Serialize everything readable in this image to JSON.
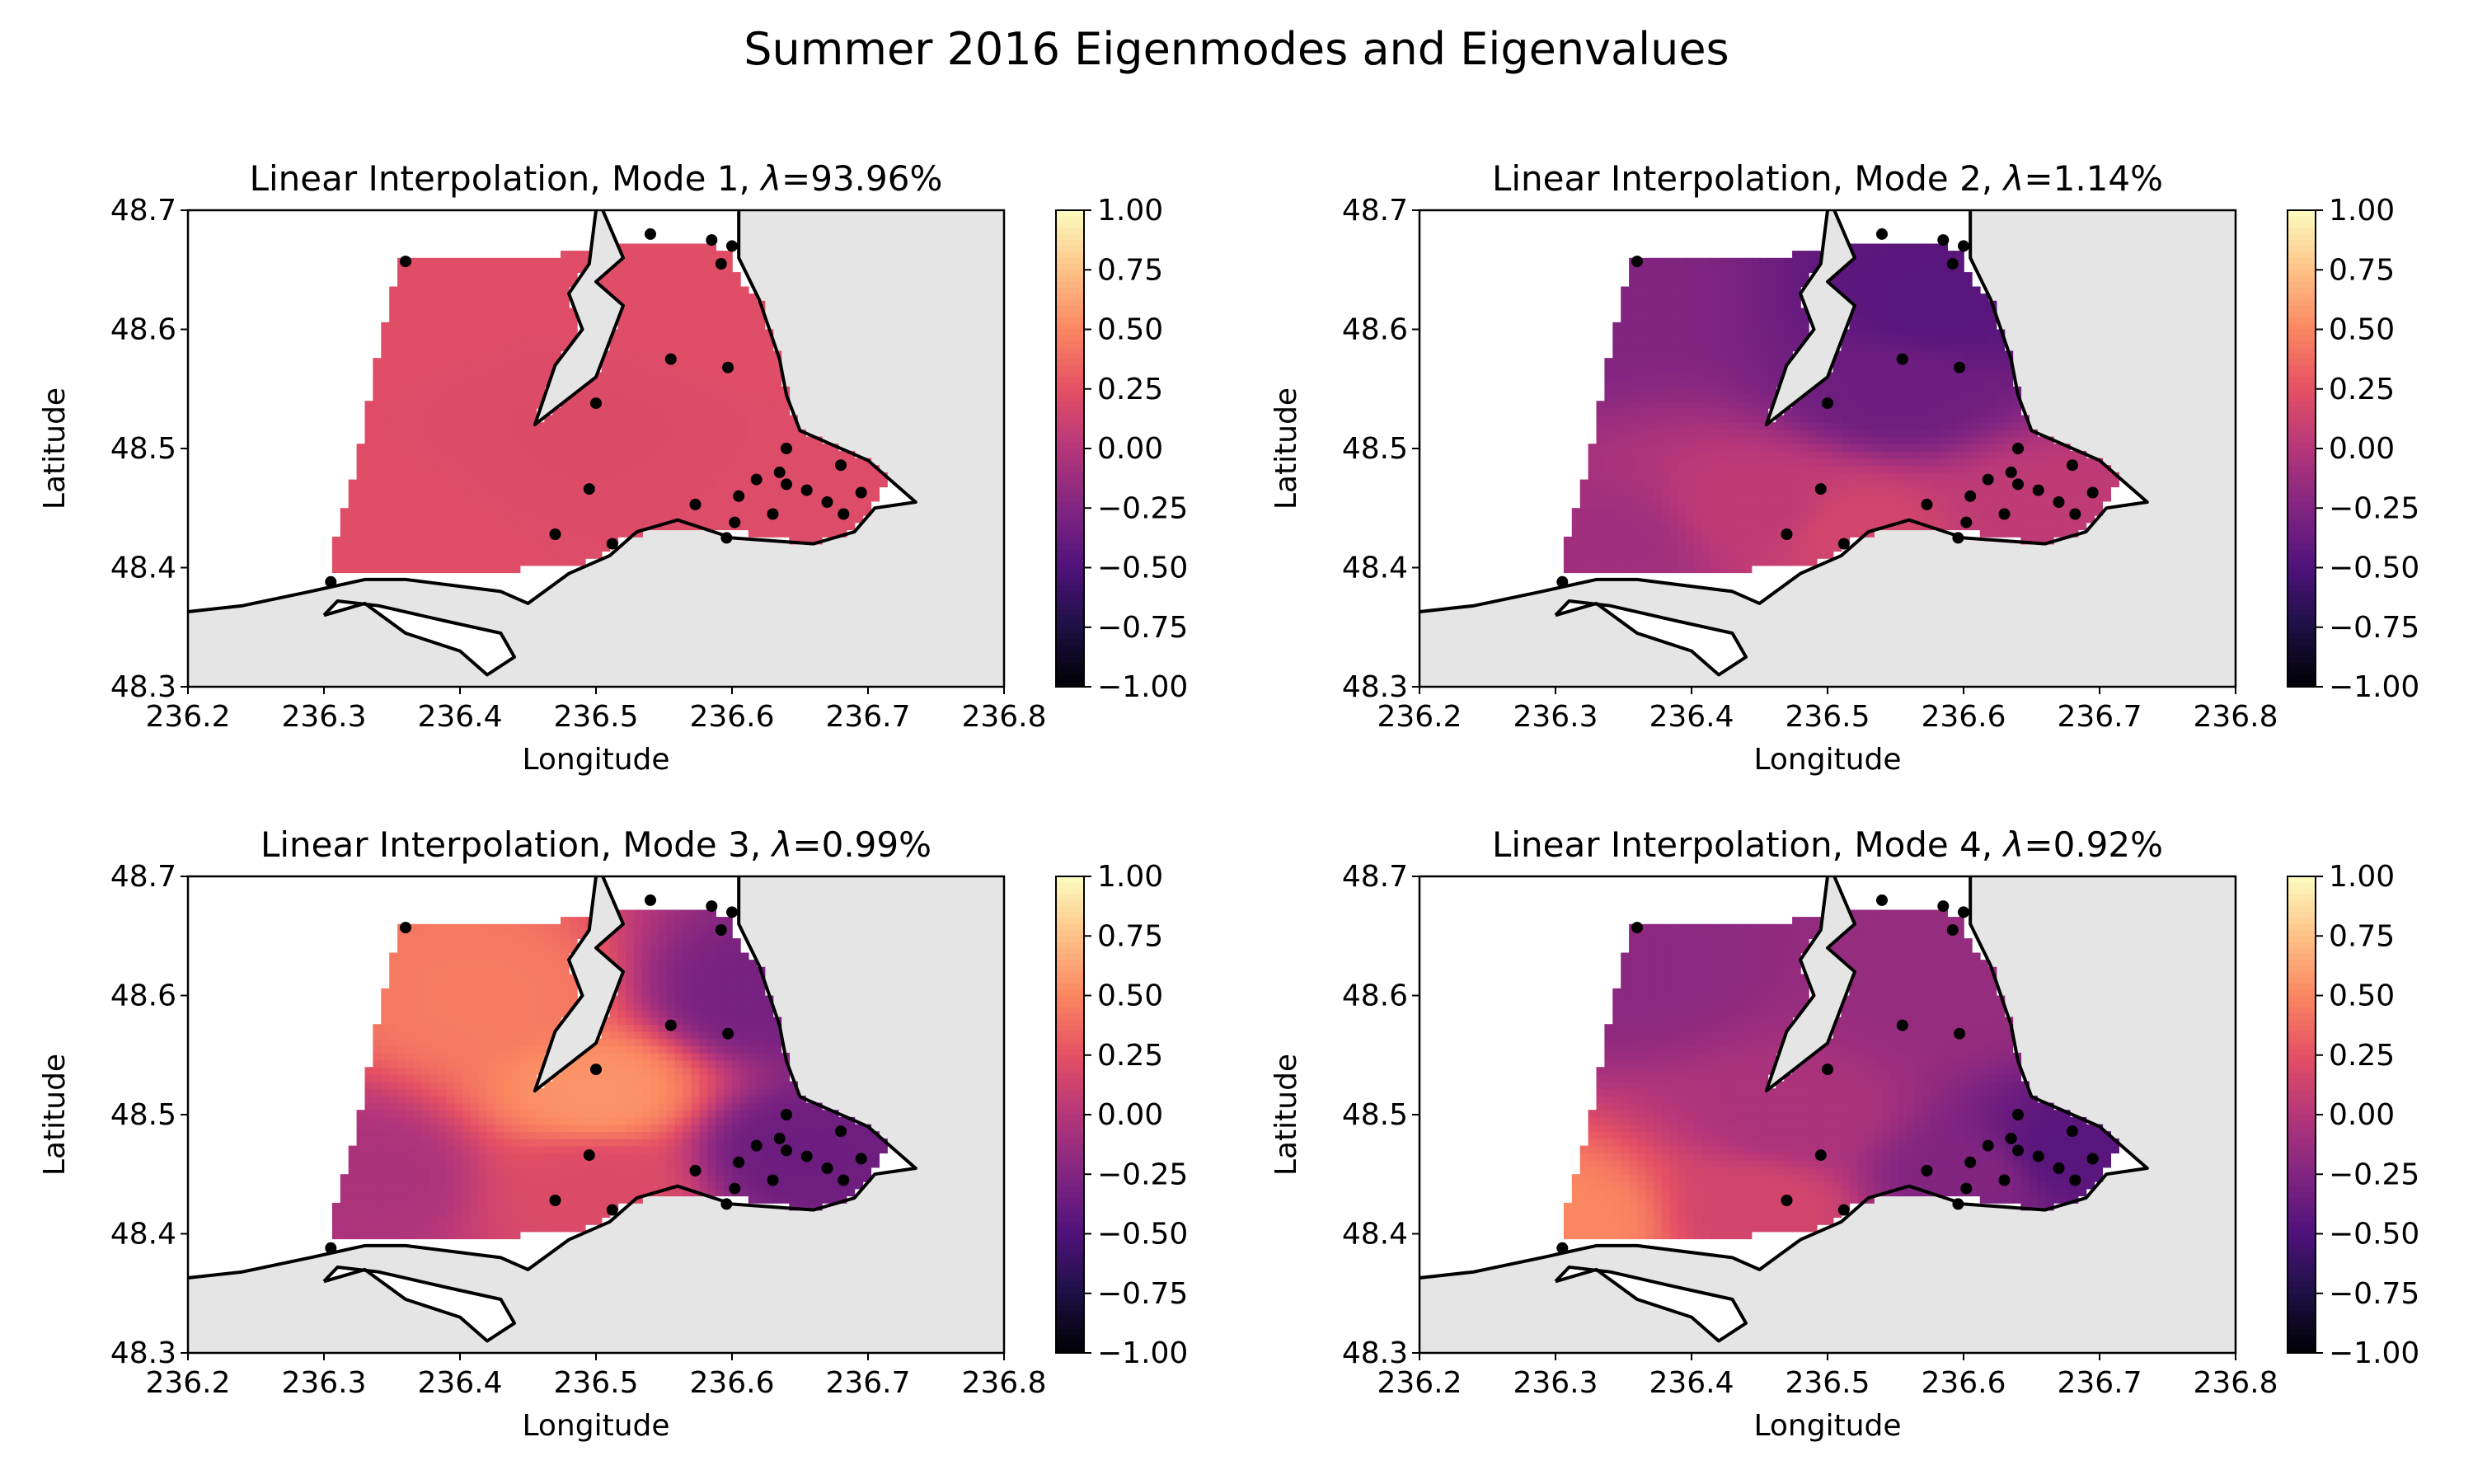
{
  "figure": {
    "title": "Summer 2016 Eigenmodes and Eigenvalues"
  },
  "colors": {
    "land": "#e5e5e5",
    "water": "#ffffff",
    "coast": "#000000",
    "station": "#000000",
    "colormap": [
      "#000004",
      "#1c1044",
      "#4f127b",
      "#812581",
      "#b5367a",
      "#e55064",
      "#fb8761",
      "#fec287",
      "#fcfdbf"
    ]
  },
  "chart_data": [
    {
      "type": "heatmap",
      "title": "Linear Interpolation, Mode 1, λ=93.96%",
      "title_prefix": "Linear Interpolation, Mode 1, ",
      "lambda_symbol": "λ",
      "lambda_value": "=93.96%",
      "xlabel": "Longitude",
      "ylabel": "Latitude",
      "xlim": [
        236.2,
        236.8
      ],
      "ylim": [
        48.3,
        48.7
      ],
      "xticks": [
        "236.2",
        "236.3",
        "236.4",
        "236.5",
        "236.6",
        "236.7",
        "236.8"
      ],
      "yticks": [
        "48.3",
        "48.4",
        "48.5",
        "48.6",
        "48.7"
      ],
      "colorbar": {
        "range": [
          -1,
          1
        ],
        "ticks": [
          "1.00",
          "0.75",
          "0.50",
          "0.25",
          "0.00",
          "−0.25",
          "−0.50",
          "−0.75",
          "−1.00"
        ]
      },
      "field_anchors": [
        {
          "lon": 236.36,
          "lat": 48.65,
          "value": 0.22
        },
        {
          "lon": 236.31,
          "lat": 48.41,
          "value": 0.22
        },
        {
          "lon": 236.5,
          "lat": 48.52,
          "value": 0.2
        },
        {
          "lon": 236.6,
          "lat": 48.62,
          "value": 0.22
        },
        {
          "lon": 236.68,
          "lat": 48.45,
          "value": 0.21
        }
      ],
      "stations": [
        {
          "lon": 236.36,
          "lat": 48.657
        },
        {
          "lon": 236.305,
          "lat": 48.388
        },
        {
          "lon": 236.54,
          "lat": 48.68
        },
        {
          "lon": 236.585,
          "lat": 48.675
        },
        {
          "lon": 236.6,
          "lat": 48.67
        },
        {
          "lon": 236.592,
          "lat": 48.655
        },
        {
          "lon": 236.555,
          "lat": 48.575
        },
        {
          "lon": 236.597,
          "lat": 48.568
        },
        {
          "lon": 236.5,
          "lat": 48.538
        },
        {
          "lon": 236.495,
          "lat": 48.466
        },
        {
          "lon": 236.47,
          "lat": 48.428
        },
        {
          "lon": 236.512,
          "lat": 48.42
        },
        {
          "lon": 236.573,
          "lat": 48.453
        },
        {
          "lon": 236.596,
          "lat": 48.425
        },
        {
          "lon": 236.602,
          "lat": 48.438
        },
        {
          "lon": 236.605,
          "lat": 48.46
        },
        {
          "lon": 236.618,
          "lat": 48.474
        },
        {
          "lon": 236.64,
          "lat": 48.5
        },
        {
          "lon": 236.635,
          "lat": 48.48
        },
        {
          "lon": 236.64,
          "lat": 48.47
        },
        {
          "lon": 236.63,
          "lat": 48.445
        },
        {
          "lon": 236.655,
          "lat": 48.465
        },
        {
          "lon": 236.67,
          "lat": 48.455
        },
        {
          "lon": 236.68,
          "lat": 48.486
        },
        {
          "lon": 236.682,
          "lat": 48.445
        },
        {
          "lon": 236.695,
          "lat": 48.463
        }
      ]
    },
    {
      "type": "heatmap",
      "title": "Linear Interpolation, Mode 2, λ=1.14%",
      "title_prefix": "Linear Interpolation, Mode 2, ",
      "lambda_symbol": "λ",
      "lambda_value": "=1.14%",
      "xlabel": "Longitude",
      "ylabel": "Latitude",
      "xlim": [
        236.2,
        236.8
      ],
      "ylim": [
        48.3,
        48.7
      ],
      "xticks": [
        "236.2",
        "236.3",
        "236.4",
        "236.5",
        "236.6",
        "236.7",
        "236.8"
      ],
      "yticks": [
        "48.3",
        "48.4",
        "48.5",
        "48.6",
        "48.7"
      ],
      "colorbar": {
        "range": [
          -1,
          1
        ],
        "ticks": [
          "1.00",
          "0.75",
          "0.50",
          "0.25",
          "0.00",
          "−0.25",
          "−0.50",
          "−0.75",
          "−1.00"
        ]
      },
      "field_anchors": [
        {
          "lon": 236.33,
          "lat": 48.62,
          "value": -0.25
        },
        {
          "lon": 236.58,
          "lat": 48.62,
          "value": -0.45
        },
        {
          "lon": 236.55,
          "lat": 48.55,
          "value": -0.35
        },
        {
          "lon": 236.45,
          "lat": 48.45,
          "value": 0.05
        },
        {
          "lon": 236.52,
          "lat": 48.43,
          "value": 0.15
        },
        {
          "lon": 236.66,
          "lat": 48.45,
          "value": 0.05
        },
        {
          "lon": 236.34,
          "lat": 48.42,
          "value": -0.1
        }
      ],
      "stations": [
        {
          "lon": 236.36,
          "lat": 48.657
        },
        {
          "lon": 236.305,
          "lat": 48.388
        },
        {
          "lon": 236.54,
          "lat": 48.68
        },
        {
          "lon": 236.585,
          "lat": 48.675
        },
        {
          "lon": 236.6,
          "lat": 48.67
        },
        {
          "lon": 236.592,
          "lat": 48.655
        },
        {
          "lon": 236.555,
          "lat": 48.575
        },
        {
          "lon": 236.597,
          "lat": 48.568
        },
        {
          "lon": 236.5,
          "lat": 48.538
        },
        {
          "lon": 236.495,
          "lat": 48.466
        },
        {
          "lon": 236.47,
          "lat": 48.428
        },
        {
          "lon": 236.512,
          "lat": 48.42
        },
        {
          "lon": 236.573,
          "lat": 48.453
        },
        {
          "lon": 236.596,
          "lat": 48.425
        },
        {
          "lon": 236.602,
          "lat": 48.438
        },
        {
          "lon": 236.605,
          "lat": 48.46
        },
        {
          "lon": 236.618,
          "lat": 48.474
        },
        {
          "lon": 236.64,
          "lat": 48.5
        },
        {
          "lon": 236.635,
          "lat": 48.48
        },
        {
          "lon": 236.64,
          "lat": 48.47
        },
        {
          "lon": 236.63,
          "lat": 48.445
        },
        {
          "lon": 236.655,
          "lat": 48.465
        },
        {
          "lon": 236.67,
          "lat": 48.455
        },
        {
          "lon": 236.68,
          "lat": 48.486
        },
        {
          "lon": 236.682,
          "lat": 48.445
        },
        {
          "lon": 236.695,
          "lat": 48.463
        }
      ]
    },
    {
      "type": "heatmap",
      "title": "Linear Interpolation, Mode 3, λ=0.99%",
      "title_prefix": "Linear Interpolation, Mode 3, ",
      "lambda_symbol": "λ",
      "lambda_value": "=0.99%",
      "xlabel": "Longitude",
      "ylabel": "Latitude",
      "xlim": [
        236.2,
        236.8
      ],
      "ylim": [
        48.3,
        48.7
      ],
      "xticks": [
        "236.2",
        "236.3",
        "236.4",
        "236.5",
        "236.6",
        "236.7",
        "236.8"
      ],
      "yticks": [
        "48.3",
        "48.4",
        "48.5",
        "48.6",
        "48.7"
      ],
      "colorbar": {
        "range": [
          -1,
          1
        ],
        "ticks": [
          "1.00",
          "0.75",
          "0.50",
          "0.25",
          "0.00",
          "−0.25",
          "−0.50",
          "−0.75",
          "−1.00"
        ]
      },
      "field_anchors": [
        {
          "lon": 236.42,
          "lat": 48.6,
          "value": 0.45
        },
        {
          "lon": 236.5,
          "lat": 48.52,
          "value": 0.55
        },
        {
          "lon": 236.33,
          "lat": 48.45,
          "value": -0.05
        },
        {
          "lon": 236.5,
          "lat": 48.44,
          "value": 0.2
        },
        {
          "lon": 236.62,
          "lat": 48.6,
          "value": -0.3
        },
        {
          "lon": 236.65,
          "lat": 48.47,
          "value": -0.35
        }
      ],
      "stations": [
        {
          "lon": 236.36,
          "lat": 48.657
        },
        {
          "lon": 236.305,
          "lat": 48.388
        },
        {
          "lon": 236.54,
          "lat": 48.68
        },
        {
          "lon": 236.585,
          "lat": 48.675
        },
        {
          "lon": 236.6,
          "lat": 48.67
        },
        {
          "lon": 236.592,
          "lat": 48.655
        },
        {
          "lon": 236.555,
          "lat": 48.575
        },
        {
          "lon": 236.597,
          "lat": 48.568
        },
        {
          "lon": 236.5,
          "lat": 48.538
        },
        {
          "lon": 236.495,
          "lat": 48.466
        },
        {
          "lon": 236.47,
          "lat": 48.428
        },
        {
          "lon": 236.512,
          "lat": 48.42
        },
        {
          "lon": 236.573,
          "lat": 48.453
        },
        {
          "lon": 236.596,
          "lat": 48.425
        },
        {
          "lon": 236.602,
          "lat": 48.438
        },
        {
          "lon": 236.605,
          "lat": 48.46
        },
        {
          "lon": 236.618,
          "lat": 48.474
        },
        {
          "lon": 236.64,
          "lat": 48.5
        },
        {
          "lon": 236.635,
          "lat": 48.48
        },
        {
          "lon": 236.64,
          "lat": 48.47
        },
        {
          "lon": 236.63,
          "lat": 48.445
        },
        {
          "lon": 236.655,
          "lat": 48.465
        },
        {
          "lon": 236.67,
          "lat": 48.455
        },
        {
          "lon": 236.68,
          "lat": 48.486
        },
        {
          "lon": 236.682,
          "lat": 48.445
        },
        {
          "lon": 236.695,
          "lat": 48.463
        }
      ]
    },
    {
      "type": "heatmap",
      "title": "Linear Interpolation, Mode 4, λ=0.92%",
      "title_prefix": "Linear Interpolation, Mode 4, ",
      "lambda_symbol": "λ",
      "lambda_value": "=0.92%",
      "xlabel": "Longitude",
      "ylabel": "Latitude",
      "xlim": [
        236.2,
        236.8
      ],
      "ylim": [
        48.3,
        48.7
      ],
      "xticks": [
        "236.2",
        "236.3",
        "236.4",
        "236.5",
        "236.6",
        "236.7",
        "236.8"
      ],
      "yticks": [
        "48.3",
        "48.4",
        "48.5",
        "48.6",
        "48.7"
      ],
      "colorbar": {
        "range": [
          -1,
          1
        ],
        "ticks": [
          "1.00",
          "0.75",
          "0.50",
          "0.25",
          "0.00",
          "−0.25",
          "−0.50",
          "−0.75",
          "−1.00"
        ]
      },
      "field_anchors": [
        {
          "lon": 236.31,
          "lat": 48.41,
          "value": 0.5
        },
        {
          "lon": 236.36,
          "lat": 48.62,
          "value": -0.2
        },
        {
          "lon": 236.48,
          "lat": 48.5,
          "value": -0.05
        },
        {
          "lon": 236.58,
          "lat": 48.6,
          "value": -0.15
        },
        {
          "lon": 236.6,
          "lat": 48.45,
          "value": -0.25
        },
        {
          "lon": 236.68,
          "lat": 48.47,
          "value": -0.45
        },
        {
          "lon": 236.45,
          "lat": 48.42,
          "value": 0.15
        }
      ],
      "stations": [
        {
          "lon": 236.36,
          "lat": 48.657
        },
        {
          "lon": 236.305,
          "lat": 48.388
        },
        {
          "lon": 236.54,
          "lat": 48.68
        },
        {
          "lon": 236.585,
          "lat": 48.675
        },
        {
          "lon": 236.6,
          "lat": 48.67
        },
        {
          "lon": 236.592,
          "lat": 48.655
        },
        {
          "lon": 236.555,
          "lat": 48.575
        },
        {
          "lon": 236.597,
          "lat": 48.568
        },
        {
          "lon": 236.5,
          "lat": 48.538
        },
        {
          "lon": 236.495,
          "lat": 48.466
        },
        {
          "lon": 236.47,
          "lat": 48.428
        },
        {
          "lon": 236.512,
          "lat": 48.42
        },
        {
          "lon": 236.573,
          "lat": 48.453
        },
        {
          "lon": 236.596,
          "lat": 48.425
        },
        {
          "lon": 236.602,
          "lat": 48.438
        },
        {
          "lon": 236.605,
          "lat": 48.46
        },
        {
          "lon": 236.618,
          "lat": 48.474
        },
        {
          "lon": 236.64,
          "lat": 48.5
        },
        {
          "lon": 236.635,
          "lat": 48.48
        },
        {
          "lon": 236.64,
          "lat": 48.47
        },
        {
          "lon": 236.63,
          "lat": 48.445
        },
        {
          "lon": 236.655,
          "lat": 48.465
        },
        {
          "lon": 236.67,
          "lat": 48.455
        },
        {
          "lon": 236.68,
          "lat": 48.486
        },
        {
          "lon": 236.682,
          "lat": 48.445
        },
        {
          "lon": 236.695,
          "lat": 48.463
        }
      ]
    }
  ]
}
